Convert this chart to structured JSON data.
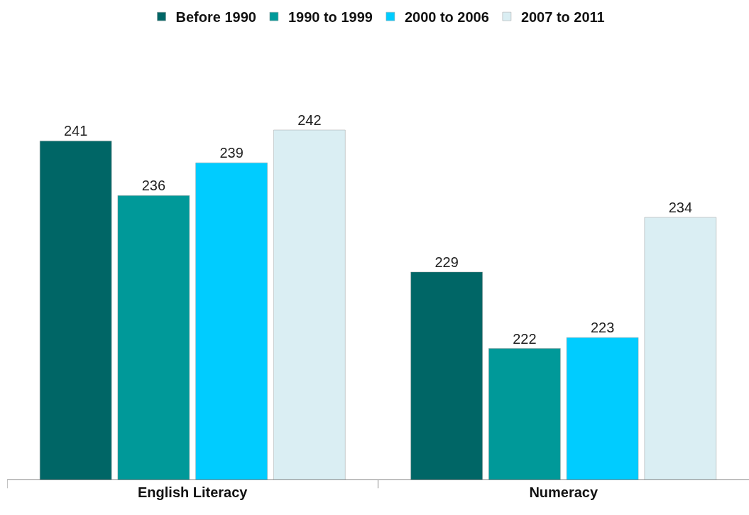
{
  "chart_data": {
    "type": "bar",
    "categories": [
      "English Literacy",
      "Numeracy"
    ],
    "series": [
      {
        "name": "Before 1990",
        "color": "#006666",
        "values": [
          241,
          229
        ]
      },
      {
        "name": "1990 to 1999",
        "color": "#009999",
        "values": [
          236,
          222
        ]
      },
      {
        "name": "2000 to 2006",
        "color": "#00ccff",
        "values": [
          239,
          223
        ]
      },
      {
        "name": "2007 to 2011",
        "color": "#daeef3",
        "values": [
          242,
          234
        ]
      }
    ],
    "data_labels": true,
    "legend": "top",
    "tick_labels": "x"
  }
}
